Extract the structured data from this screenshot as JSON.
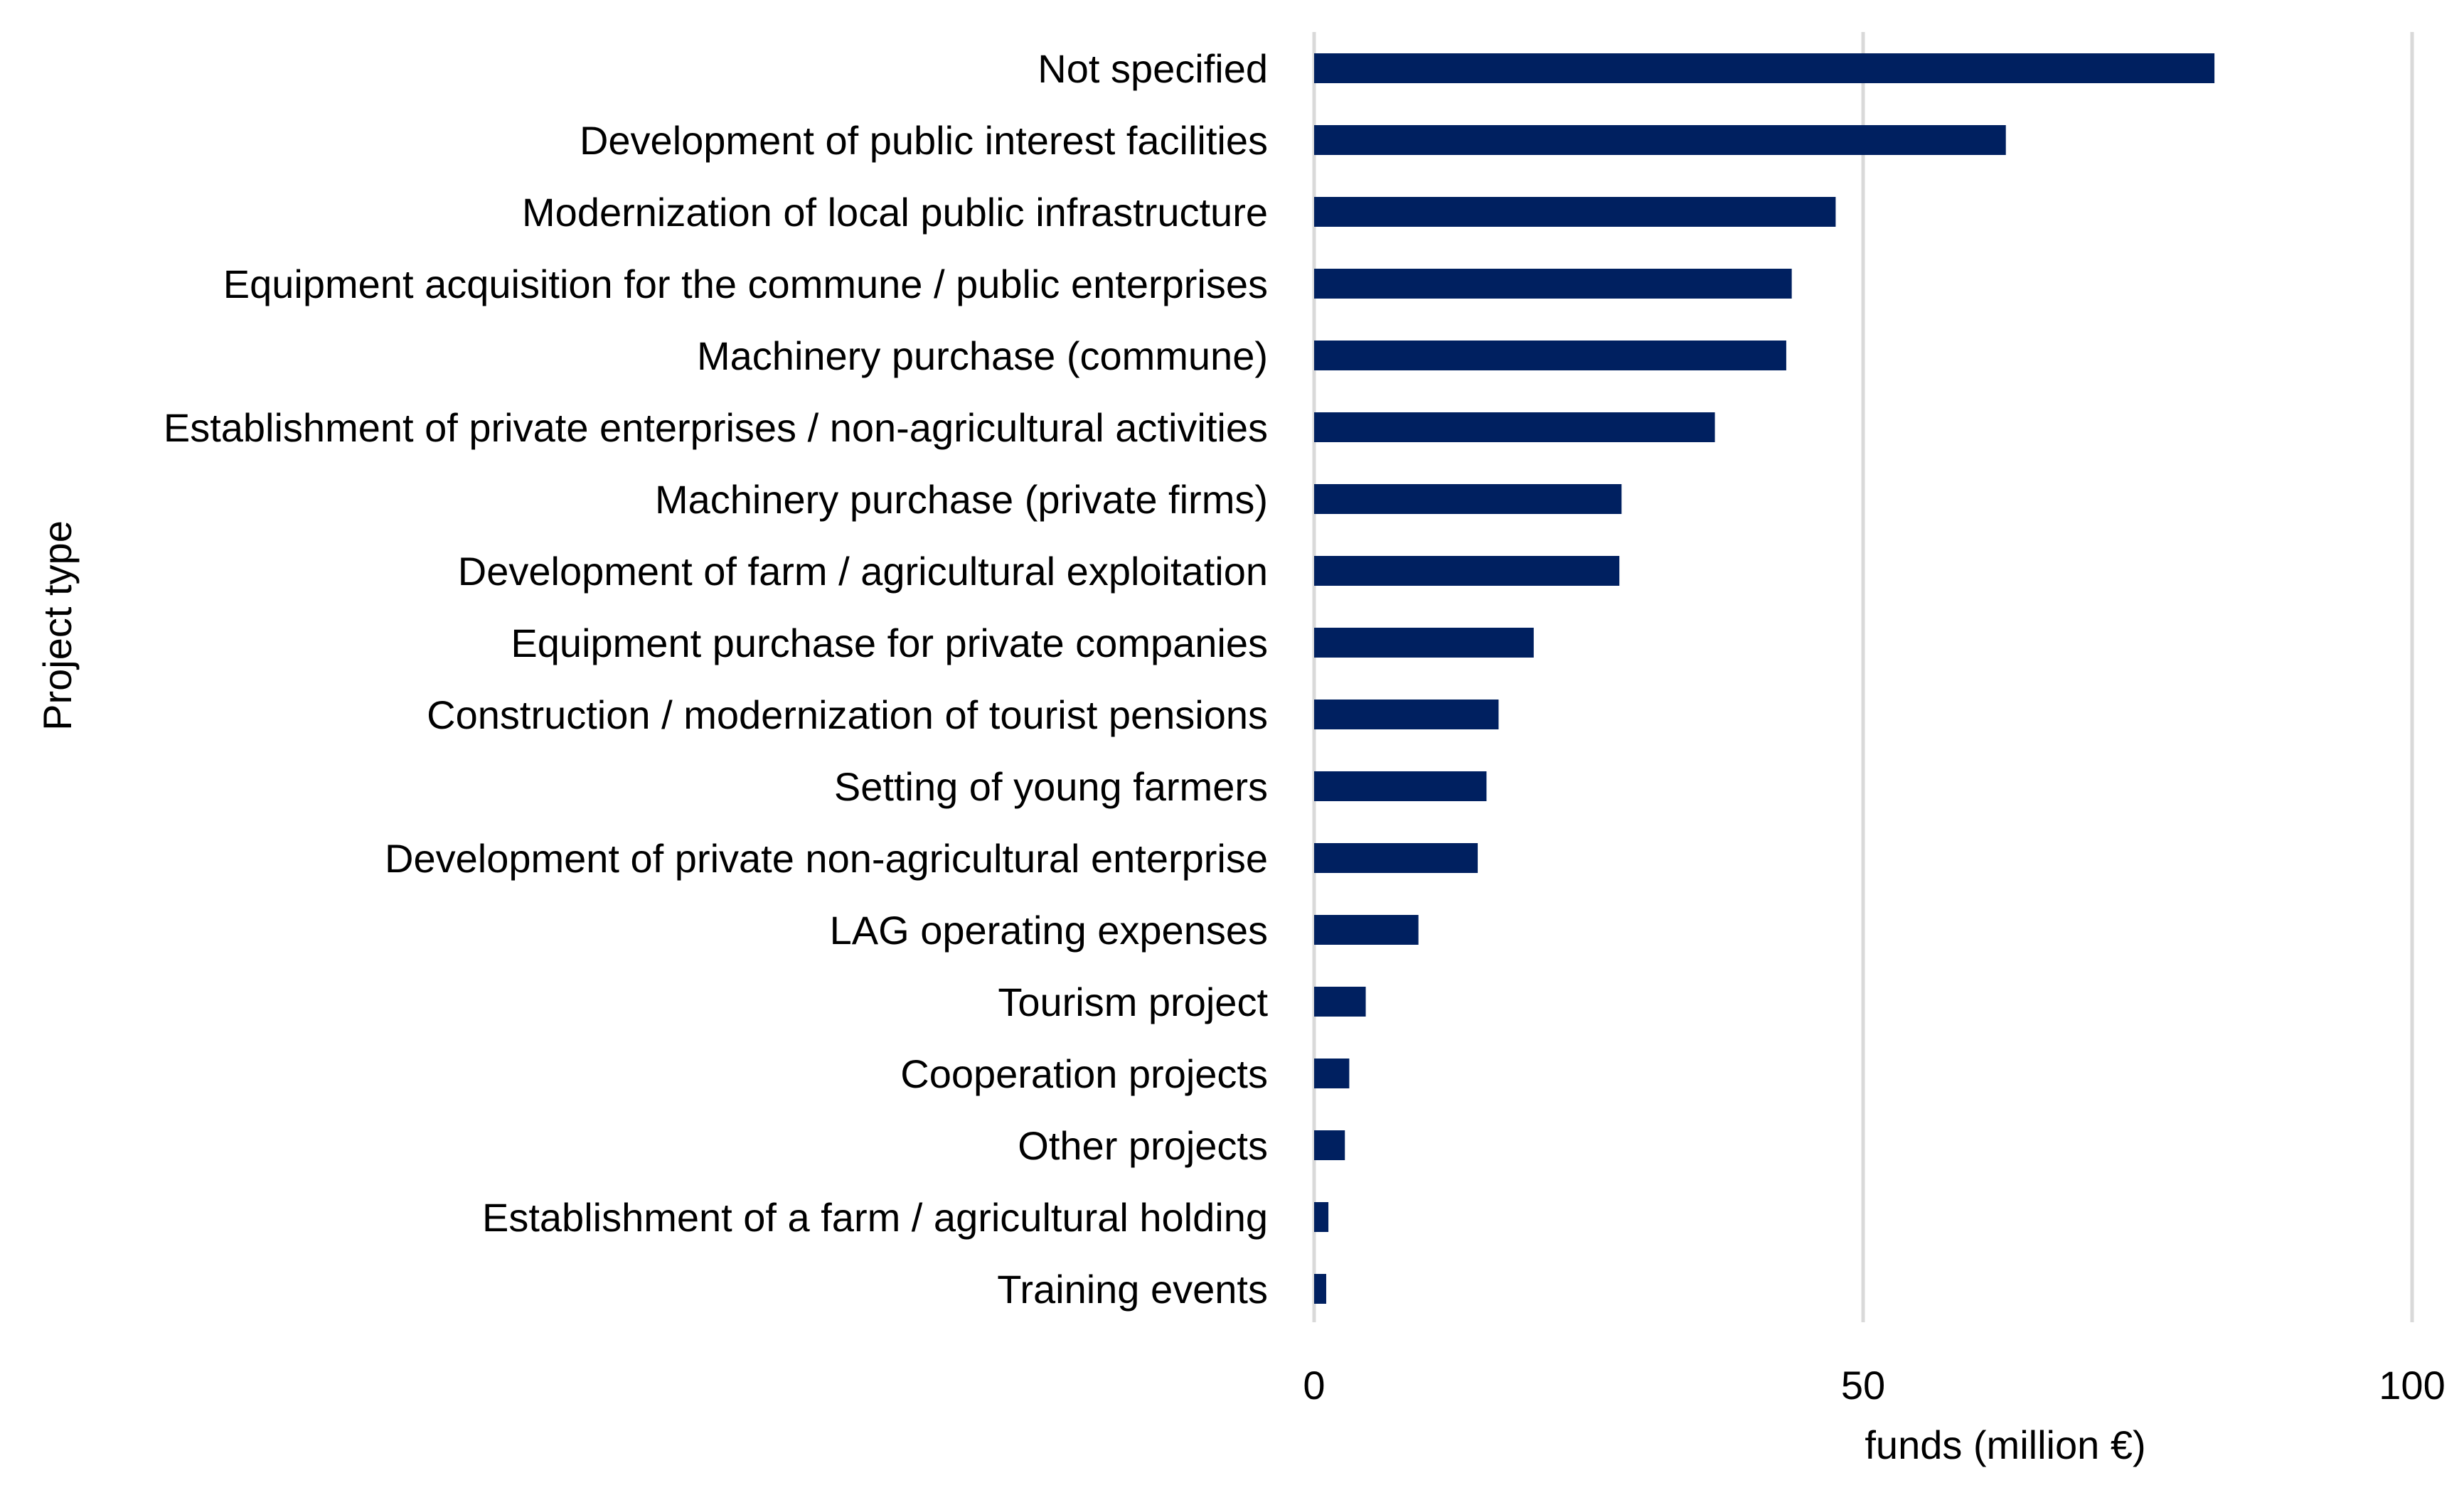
{
  "chart_data": {
    "type": "bar",
    "orientation": "horizontal",
    "title": "",
    "xlabel": "funds (million €)",
    "ylabel": "Project type",
    "xlim": [
      0,
      100
    ],
    "xticks": [
      0,
      50,
      100
    ],
    "grid": "vertical",
    "legend": "none",
    "bar_color": "#002060",
    "grid_color": "#d9d9d9",
    "categories": [
      "Not specified",
      "Development of public interest facilities",
      "Modernization of local public infrastructure",
      "Equipment acquisition for the commune / public enterprises",
      "Machinery purchase (commune)",
      "Establishment of private enterprises / non-agricultural activities",
      "Machinery purchase (private firms)",
      "Development of farm / agricultural exploitation",
      "Equipment purchase for private companies",
      "Construction / modernization of tourist pensions",
      "Setting of young farmers",
      "Development of  private non-agricultural enterprise",
      "LAG operating expenses",
      "Tourism project",
      "Cooperation projects",
      "Other projects",
      "Establishment of a farm / agricultural holding",
      "Training events"
    ],
    "values": [
      82,
      63,
      47.5,
      43.5,
      43,
      36.5,
      28,
      27.8,
      20,
      16.8,
      15.7,
      14.9,
      9.5,
      4.7,
      3.2,
      2.8,
      1.3,
      1.1
    ]
  }
}
